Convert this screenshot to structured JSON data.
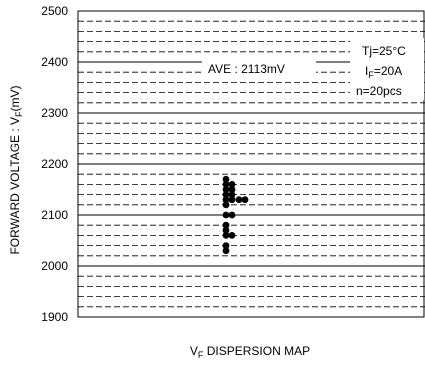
{
  "chart_data": {
    "type": "scatter",
    "title": "",
    "xlabel": "V F DISPERSION MAP",
    "xlabel_main": "V",
    "xlabel_sub": "F",
    "xlabel_rest": " DISPERSION MAP",
    "ylabel": "FORWARD VOLTAGE : V F (mV)",
    "ylabel_main": "FORWARD VOLTAGE : V",
    "ylabel_sub": "F",
    "ylabel_rest": "(mV)",
    "ylim": [
      1900,
      2500
    ],
    "yticks": [
      "1900",
      "2000",
      "2100",
      "2200",
      "2300",
      "2400",
      "2500"
    ],
    "minor_step": 20,
    "grid": true,
    "annotations": {
      "average": "AVE : 2113mV",
      "conditions": [
        {
          "main": "Tj=25°C",
          "sub": "",
          "rest": ""
        },
        {
          "main": "I",
          "sub": "F",
          "rest": "=20A"
        },
        {
          "main": "n=20pcs",
          "sub": "",
          "rest": ""
        }
      ]
    },
    "series": [
      {
        "points": [
          {
            "col": 0,
            "y": 2170
          },
          {
            "col": 0,
            "y": 2160
          },
          {
            "col": 0,
            "y": 2150
          },
          {
            "col": 0,
            "y": 2140
          },
          {
            "col": 0,
            "y": 2130
          },
          {
            "col": 0,
            "y": 2120
          },
          {
            "col": 0,
            "y": 2100
          },
          {
            "col": 0,
            "y": 2080
          },
          {
            "col": 0,
            "y": 2070
          },
          {
            "col": 0,
            "y": 2060
          },
          {
            "col": 0,
            "y": 2040
          },
          {
            "col": 0,
            "y": 2030
          },
          {
            "col": 1,
            "y": 2160
          },
          {
            "col": 1,
            "y": 2150
          },
          {
            "col": 1,
            "y": 2140
          },
          {
            "col": 1,
            "y": 2130
          },
          {
            "col": 1,
            "y": 2100
          },
          {
            "col": 1,
            "y": 2060
          },
          {
            "col": 2,
            "y": 2130
          },
          {
            "col": 3,
            "y": 2130
          }
        ]
      }
    ],
    "colors": {
      "grid_major": "#000000",
      "grid_minor": "#000000",
      "marker": "#000000",
      "frame": "#000000",
      "label_box_bg": "#ffffff"
    }
  }
}
